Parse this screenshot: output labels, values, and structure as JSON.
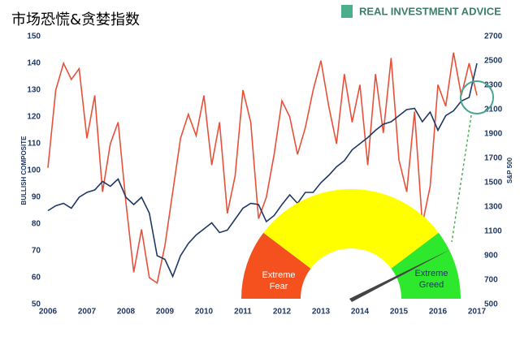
{
  "logo": "REAL INVESTMENT ADVICE",
  "chart_data": {
    "type": "line",
    "title": "市场恐慌&贪婪指数",
    "y_label": "BULLISH COMPOSITE",
    "y2_label": "S&P 500",
    "x": [
      2006.0,
      2006.2,
      2006.4,
      2006.6,
      2006.8,
      2007.0,
      2007.2,
      2007.4,
      2007.6,
      2007.8,
      2008.0,
      2008.2,
      2008.4,
      2008.6,
      2008.8,
      2009.0,
      2009.2,
      2009.4,
      2009.6,
      2009.8,
      2010.0,
      2010.2,
      2010.4,
      2010.6,
      2010.8,
      2011.0,
      2011.2,
      2011.4,
      2011.6,
      2011.8,
      2012.0,
      2012.2,
      2012.4,
      2012.6,
      2012.8,
      2013.0,
      2013.2,
      2013.4,
      2013.6,
      2013.8,
      2014.0,
      2014.2,
      2014.4,
      2014.6,
      2014.8,
      2015.0,
      2015.2,
      2015.4,
      2015.6,
      2015.8,
      2016.0,
      2016.2,
      2016.4,
      2016.6,
      2016.8,
      2017.0
    ],
    "xlim": [
      2006,
      2017
    ],
    "xticks": [
      2006,
      2007,
      2008,
      2009,
      2010,
      2011,
      2012,
      2013,
      2014,
      2015,
      2016,
      2017
    ],
    "ylim": [
      50,
      150
    ],
    "yticks": [
      50,
      60,
      70,
      80,
      90,
      100,
      110,
      120,
      130,
      140,
      150
    ],
    "y2lim": [
      500,
      2700
    ],
    "y2ticks": [
      500,
      700,
      900,
      1100,
      1300,
      1500,
      1700,
      1900,
      2100,
      2300,
      2500,
      2700
    ],
    "series": [
      {
        "name": "Bullish Composite",
        "color": "#e8503a",
        "values": [
          101,
          130,
          140,
          134,
          138,
          112,
          128,
          92,
          110,
          118,
          88,
          62,
          78,
          60,
          58,
          72,
          92,
          112,
          121,
          113,
          128,
          102,
          118,
          84,
          98,
          130,
          118,
          82,
          90,
          106,
          126,
          120,
          106,
          116,
          130,
          141,
          124,
          110,
          136,
          118,
          132,
          102,
          136,
          114,
          142,
          104,
          92,
          122,
          80,
          94,
          132,
          124,
          144,
          128,
          140,
          128
        ]
      },
      {
        "name": "S&P 500",
        "color": "#1f3864",
        "axis": "y2",
        "values": [
          1270,
          1310,
          1330,
          1290,
          1380,
          1420,
          1440,
          1510,
          1470,
          1530,
          1380,
          1320,
          1380,
          1250,
          900,
          870,
          730,
          900,
          1000,
          1070,
          1120,
          1170,
          1090,
          1110,
          1200,
          1290,
          1330,
          1320,
          1180,
          1230,
          1320,
          1400,
          1330,
          1420,
          1420,
          1500,
          1560,
          1630,
          1680,
          1770,
          1820,
          1870,
          1930,
          1980,
          2000,
          2050,
          2100,
          2110,
          2000,
          2080,
          1930,
          2050,
          2090,
          2170,
          2200,
          2480
        ]
      }
    ],
    "annotations": [
      "Extreme Fear",
      "Extreme Greed"
    ]
  }
}
